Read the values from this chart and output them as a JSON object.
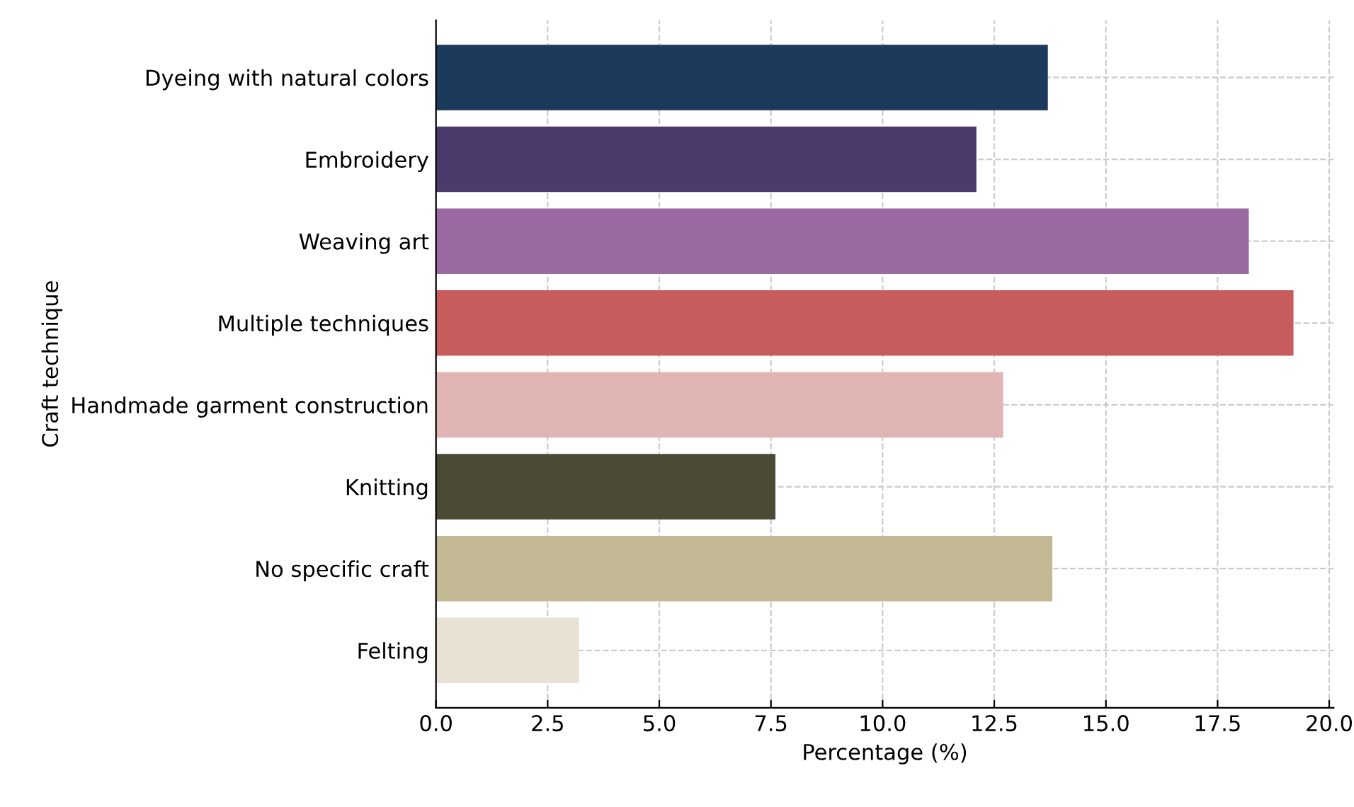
{
  "chart_data": {
    "type": "bar",
    "orientation": "horizontal",
    "xlabel": "Percentage (%)",
    "ylabel": "Craft technique",
    "categories": [
      "Dyeing with natural colors",
      "Embroidery",
      "Weaving art",
      "Multiple techniques",
      "Handmade garment construction",
      "Knitting",
      "No specific craft",
      "Felting"
    ],
    "values": [
      13.7,
      12.1,
      18.2,
      19.2,
      12.7,
      7.6,
      13.8,
      3.2
    ],
    "colors": [
      "#1b3a5c",
      "#4b3a6b",
      "#9b6aa3",
      "#c85c5c",
      "#e2b5b5",
      "#4b4a35",
      "#c3b994",
      "#e8e2d4"
    ],
    "xlim": [
      0,
      20.1
    ],
    "xticks": [
      {
        "value": 0,
        "label": "0.0"
      },
      {
        "value": 2.5,
        "label": "2.5"
      },
      {
        "value": 5,
        "label": "5.0"
      },
      {
        "value": 7.5,
        "label": "7.5"
      },
      {
        "value": 10,
        "label": "10.0"
      },
      {
        "value": 12.5,
        "label": "12.5"
      },
      {
        "value": 15,
        "label": "15.0"
      },
      {
        "value": 17.5,
        "label": "17.5"
      },
      {
        "value": 20,
        "label": "20.0"
      }
    ],
    "grid": true
  }
}
